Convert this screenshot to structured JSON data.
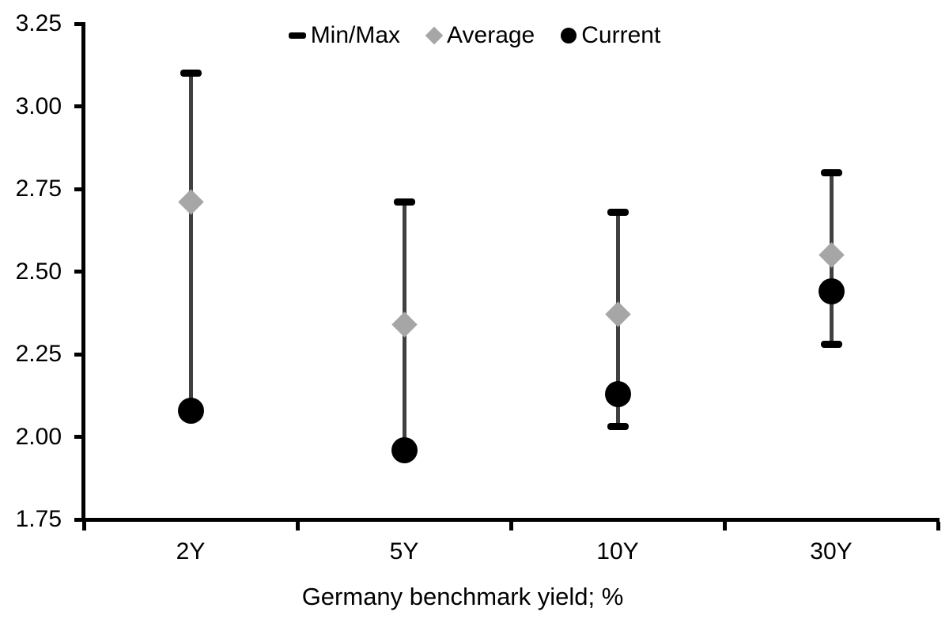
{
  "chart_data": {
    "type": "scatter",
    "subtype": "min-max range bars with average and current markers",
    "categories": [
      "2Y",
      "5Y",
      "10Y",
      "30Y"
    ],
    "series": [
      {
        "name": "Min/Max",
        "marker": "black-dash-cap",
        "color": "#000000",
        "min": [
          2.08,
          1.96,
          2.03,
          2.28
        ],
        "max": [
          3.1,
          2.71,
          2.68,
          2.8
        ]
      },
      {
        "name": "Average",
        "marker": "gray-diamond",
        "color": "#a6a6a6",
        "values": [
          2.71,
          2.34,
          2.37,
          2.55
        ]
      },
      {
        "name": "Current",
        "marker": "black-circle",
        "color": "#000000",
        "values": [
          2.08,
          1.96,
          2.13,
          2.44
        ]
      }
    ],
    "title": "",
    "xlabel": "Germany benchmark yield; %",
    "ylabel": "",
    "ylim": [
      1.75,
      3.25
    ],
    "ytick_step": 0.25,
    "ytick_labels": [
      "1.75",
      "2.00",
      "2.25",
      "2.50",
      "2.75",
      "3.00",
      "3.25"
    ],
    "grid": false,
    "legend_position": "top-center",
    "range_line_color": "#404040",
    "axis_color": "#000000",
    "text_color": "#000000",
    "background_color": "#ffffff"
  }
}
